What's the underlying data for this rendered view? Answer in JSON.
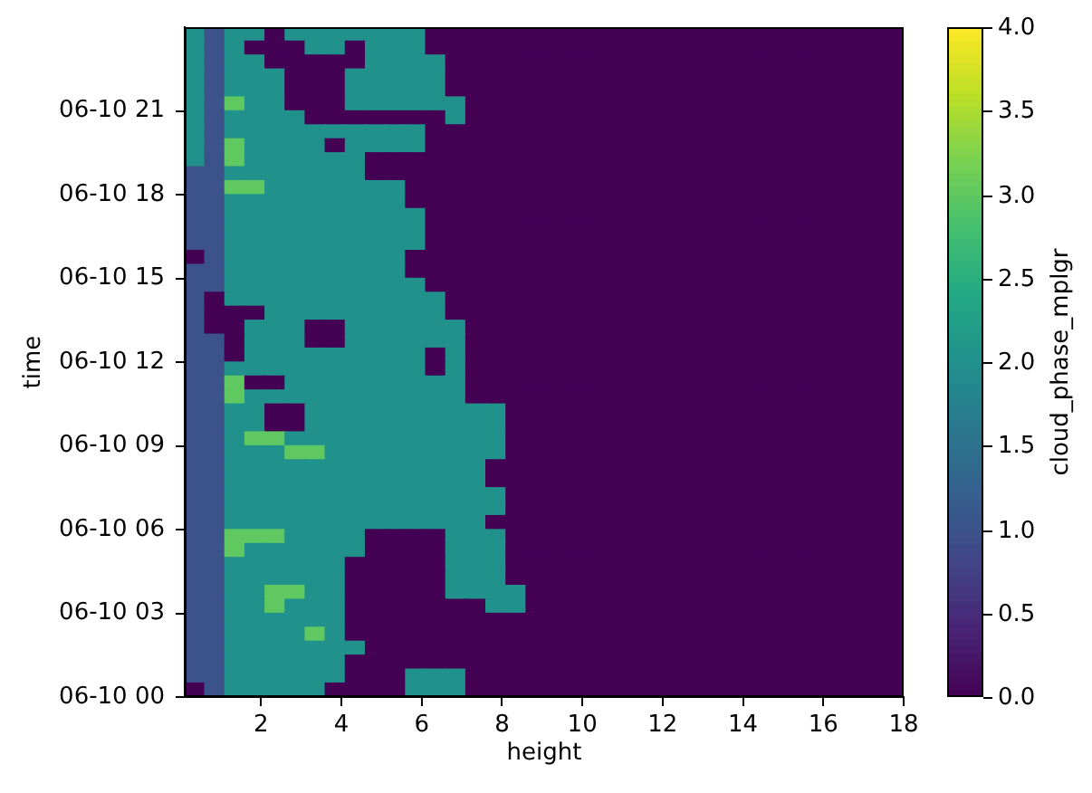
{
  "chart_data": {
    "type": "heatmap",
    "xlabel": "height",
    "ylabel": "time",
    "clabel": "cloud_phase_mplgr",
    "x": [
      0.35,
      0.85,
      1.35,
      1.85,
      2.35,
      2.85,
      3.35,
      3.85,
      4.35,
      4.85,
      5.35,
      5.85,
      6.35,
      6.85,
      7.35,
      7.85,
      8.35,
      8.85,
      9.35,
      9.85,
      10.35,
      10.85,
      11.35,
      11.85,
      12.35,
      12.85,
      13.35,
      13.85,
      14.35,
      14.85,
      15.35,
      15.85,
      16.35,
      16.85,
      17.35,
      17.85
    ],
    "xlim": [
      0.1,
      18.0
    ],
    "xticks": [
      2,
      4,
      6,
      8,
      10,
      12,
      14,
      16,
      18
    ],
    "ylim": [
      "--06-10T00:00",
      "--06-11T00:00"
    ],
    "yticks": [
      {
        "value": "--06-10T00:00",
        "label": "06-10 00"
      },
      {
        "value": "--06-10T03:00",
        "label": "06-10 03"
      },
      {
        "value": "--06-10T06:00",
        "label": "06-10 06"
      },
      {
        "value": "--06-10T09:00",
        "label": "06-10 09"
      },
      {
        "value": "--06-10T12:00",
        "label": "06-10 12"
      },
      {
        "value": "--06-10T15:00",
        "label": "06-10 15"
      },
      {
        "value": "--06-10T18:00",
        "label": "06-10 18"
      },
      {
        "value": "--06-10T21:00",
        "label": "06-10 21"
      }
    ],
    "clim": [
      0,
      4
    ],
    "cticks": [
      {
        "value": 0,
        "label": "0.0"
      },
      {
        "value": 0.5,
        "label": "0.5"
      },
      {
        "value": 1,
        "label": "1.0"
      },
      {
        "value": 1.5,
        "label": "1.5"
      },
      {
        "value": 2,
        "label": "2.0"
      },
      {
        "value": 2.5,
        "label": "2.5"
      },
      {
        "value": 3,
        "label": "3.0"
      },
      {
        "value": 3.5,
        "label": "3.5"
      },
      {
        "value": 4,
        "label": "4.0"
      }
    ],
    "cells": [
      [
        2,
        1,
        2,
        2,
        0,
        2,
        2,
        2,
        2,
        2,
        2,
        2,
        0,
        0,
        0,
        0,
        0,
        0,
        0,
        0,
        0,
        0,
        0,
        0,
        0,
        0,
        0,
        0,
        0,
        0,
        0,
        0,
        0,
        0,
        0,
        0
      ],
      [
        2,
        1,
        2,
        0,
        0,
        0,
        2,
        2,
        0,
        2,
        2,
        2,
        0,
        0,
        0,
        0,
        0,
        0,
        0,
        0,
        0,
        0,
        0,
        0,
        0,
        0,
        0,
        0,
        0,
        0,
        0,
        0,
        0,
        0,
        0,
        0
      ],
      [
        2,
        1,
        2,
        2,
        0,
        0,
        0,
        0,
        0,
        2,
        2,
        2,
        2,
        0,
        0,
        0,
        0,
        0,
        0,
        0,
        0,
        0,
        0,
        0,
        0,
        0,
        0,
        0,
        0,
        0,
        0,
        0,
        0,
        0,
        0,
        0
      ],
      [
        2,
        1,
        2,
        2,
        2,
        0,
        0,
        0,
        2,
        2,
        2,
        2,
        2,
        0,
        0,
        0,
        0,
        0,
        0,
        0,
        0,
        0,
        0,
        0,
        0,
        0,
        0,
        0,
        0,
        0,
        0,
        0,
        0,
        0,
        0,
        0
      ],
      [
        2,
        1,
        2,
        2,
        2,
        0,
        0,
        0,
        2,
        2,
        2,
        2,
        2,
        0,
        0,
        0,
        0,
        0,
        0,
        0,
        0,
        0,
        0,
        0,
        0,
        0,
        0,
        0,
        0,
        0,
        0,
        0,
        0,
        0,
        0,
        0
      ],
      [
        2,
        1,
        3,
        2,
        2,
        0,
        0,
        0,
        2,
        2,
        2,
        2,
        2,
        2,
        0,
        0,
        0,
        0,
        0,
        0,
        0,
        0,
        0,
        0,
        0,
        0,
        0,
        0,
        0,
        0,
        0,
        0,
        0,
        0,
        0,
        0
      ],
      [
        2,
        1,
        2,
        2,
        2,
        2,
        0,
        0,
        0,
        0,
        0,
        0,
        0,
        2,
        0,
        0,
        0,
        0,
        0,
        0,
        0,
        0,
        0,
        0,
        0,
        0,
        0,
        0,
        0,
        0,
        0,
        0,
        0,
        0,
        0,
        0
      ],
      [
        2,
        1,
        2,
        2,
        2,
        2,
        2,
        2,
        2,
        2,
        2,
        2,
        0,
        0,
        0,
        0,
        0,
        0,
        0,
        0,
        0,
        0,
        0,
        0,
        0,
        0,
        0,
        0,
        0,
        0,
        0,
        0,
        0,
        0,
        0,
        0
      ],
      [
        2,
        1,
        3,
        2,
        2,
        2,
        2,
        0,
        2,
        2,
        2,
        2,
        0,
        0,
        0,
        0,
        0,
        0,
        0,
        0,
        0,
        0,
        0,
        0,
        0,
        0,
        0,
        0,
        0,
        0,
        0,
        0,
        0,
        0,
        0,
        0
      ],
      [
        2,
        1,
        3,
        2,
        2,
        2,
        2,
        2,
        2,
        0,
        0,
        0,
        0,
        0,
        0,
        0,
        0,
        0,
        0,
        0,
        0,
        0,
        0,
        0,
        0,
        0,
        0,
        0,
        0,
        0,
        0,
        0,
        0,
        0,
        0,
        0
      ],
      [
        1,
        1,
        2,
        2,
        2,
        2,
        2,
        2,
        2,
        0,
        0,
        0,
        0,
        0,
        0,
        0,
        0,
        0,
        0,
        0,
        0,
        0,
        0,
        0,
        0,
        0,
        0,
        0,
        0,
        0,
        0,
        0,
        0,
        0,
        0,
        0
      ],
      [
        1,
        1,
        3,
        3,
        2,
        2,
        2,
        2,
        2,
        2,
        2,
        0,
        0,
        0,
        0,
        0,
        0,
        0,
        0,
        0,
        0,
        0,
        0,
        0,
        0,
        0,
        0,
        0,
        0,
        0,
        0,
        0,
        0,
        0,
        0,
        0
      ],
      [
        1,
        1,
        2,
        2,
        2,
        2,
        2,
        2,
        2,
        2,
        2,
        0,
        0,
        0,
        0,
        0,
        0,
        0,
        0,
        0,
        0,
        0,
        0,
        0,
        0,
        0,
        0,
        0,
        0,
        0,
        0,
        0,
        0,
        0,
        0,
        0
      ],
      [
        1,
        1,
        2,
        2,
        2,
        2,
        2,
        2,
        2,
        2,
        2,
        2,
        0,
        0,
        0,
        0,
        0,
        0,
        0,
        0,
        0,
        0,
        0,
        0,
        0,
        0,
        0,
        0,
        0,
        0,
        0,
        0,
        0,
        0,
        0,
        0
      ],
      [
        1,
        1,
        2,
        2,
        2,
        2,
        2,
        2,
        2,
        2,
        2,
        2,
        0,
        0,
        0,
        0,
        0,
        0,
        0,
        0,
        0,
        0,
        0,
        0,
        0,
        0,
        0,
        0,
        0,
        0,
        0,
        0,
        0,
        0,
        0,
        0
      ],
      [
        1,
        1,
        2,
        2,
        2,
        2,
        2,
        2,
        2,
        2,
        2,
        2,
        0,
        0,
        0,
        0,
        0,
        0,
        0,
        0,
        0,
        0,
        0,
        0,
        0,
        0,
        0,
        0,
        0,
        0,
        0,
        0,
        0,
        0,
        0,
        0
      ],
      [
        0,
        1,
        2,
        2,
        2,
        2,
        2,
        2,
        2,
        2,
        2,
        0,
        0,
        0,
        0,
        0,
        0,
        0,
        0,
        0,
        0,
        0,
        0,
        0,
        0,
        0,
        0,
        0,
        0,
        0,
        0,
        0,
        0,
        0,
        0,
        0
      ],
      [
        1,
        1,
        2,
        2,
        2,
        2,
        2,
        2,
        2,
        2,
        2,
        0,
        0,
        0,
        0,
        0,
        0,
        0,
        0,
        0,
        0,
        0,
        0,
        0,
        0,
        0,
        0,
        0,
        0,
        0,
        0,
        0,
        0,
        0,
        0,
        0
      ],
      [
        1,
        1,
        2,
        2,
        2,
        2,
        2,
        2,
        2,
        2,
        2,
        2,
        0,
        0,
        0,
        0,
        0,
        0,
        0,
        0,
        0,
        0,
        0,
        0,
        0,
        0,
        0,
        0,
        0,
        0,
        0,
        0,
        0,
        0,
        0,
        0
      ],
      [
        1,
        0,
        2,
        2,
        2,
        2,
        2,
        2,
        2,
        2,
        2,
        2,
        2,
        0,
        0,
        0,
        0,
        0,
        0,
        0,
        0,
        0,
        0,
        0,
        0,
        0,
        0,
        0,
        0,
        0,
        0,
        0,
        0,
        0,
        0,
        0
      ],
      [
        1,
        0,
        0,
        0,
        2,
        2,
        2,
        2,
        2,
        2,
        2,
        2,
        2,
        0,
        0,
        0,
        0,
        0,
        0,
        0,
        0,
        0,
        0,
        0,
        0,
        0,
        0,
        0,
        0,
        0,
        0,
        0,
        0,
        0,
        0,
        0
      ],
      [
        1,
        0,
        0,
        2,
        2,
        2,
        0,
        0,
        2,
        2,
        2,
        2,
        2,
        2,
        0,
        0,
        0,
        0,
        0,
        0,
        0,
        0,
        0,
        0,
        0,
        0,
        0,
        0,
        0,
        0,
        0,
        0,
        0,
        0,
        0,
        0
      ],
      [
        1,
        1,
        0,
        2,
        2,
        2,
        0,
        0,
        2,
        2,
        2,
        2,
        2,
        2,
        0,
        0,
        0,
        0,
        0,
        0,
        0,
        0,
        0,
        0,
        0,
        0,
        0,
        0,
        0,
        0,
        0,
        0,
        0,
        0,
        0,
        0
      ],
      [
        1,
        1,
        0,
        2,
        2,
        2,
        2,
        2,
        2,
        2,
        2,
        2,
        0,
        2,
        0,
        0,
        0,
        0,
        0,
        0,
        0,
        0,
        0,
        0,
        0,
        0,
        0,
        0,
        0,
        0,
        0,
        0,
        0,
        0,
        0,
        0
      ],
      [
        1,
        1,
        2,
        2,
        2,
        2,
        2,
        2,
        2,
        2,
        2,
        2,
        0,
        2,
        0,
        0,
        0,
        0,
        0,
        0,
        0,
        0,
        0,
        0,
        0,
        0,
        0,
        0,
        0,
        0,
        0,
        0,
        0,
        0,
        0,
        0
      ],
      [
        1,
        1,
        3,
        0,
        0,
        2,
        2,
        2,
        2,
        2,
        2,
        2,
        2,
        2,
        0,
        0,
        0,
        0,
        0,
        0,
        0,
        0,
        0,
        0,
        0,
        0,
        0,
        0,
        0,
        0,
        0,
        0,
        0,
        0,
        0,
        0
      ],
      [
        1,
        1,
        3,
        2,
        2,
        2,
        2,
        2,
        2,
        2,
        2,
        2,
        2,
        2,
        0,
        0,
        0,
        0,
        0,
        0,
        0,
        0,
        0,
        0,
        0,
        0,
        0,
        0,
        0,
        0,
        0,
        0,
        0,
        0,
        0,
        0
      ],
      [
        1,
        1,
        2,
        2,
        0,
        0,
        2,
        2,
        2,
        2,
        2,
        2,
        2,
        2,
        2,
        2,
        0,
        0,
        0,
        0,
        0,
        0,
        0,
        0,
        0,
        0,
        0,
        0,
        0,
        0,
        0,
        0,
        0,
        0,
        0,
        0
      ],
      [
        1,
        1,
        2,
        2,
        0,
        0,
        2,
        2,
        2,
        2,
        2,
        2,
        2,
        2,
        2,
        2,
        0,
        0,
        0,
        0,
        0,
        0,
        0,
        0,
        0,
        0,
        0,
        0,
        0,
        0,
        0,
        0,
        0,
        0,
        0,
        0
      ],
      [
        1,
        1,
        2,
        3,
        3,
        2,
        2,
        2,
        2,
        2,
        2,
        2,
        2,
        2,
        2,
        2,
        0,
        0,
        0,
        0,
        0,
        0,
        0,
        0,
        0,
        0,
        0,
        0,
        0,
        0,
        0,
        0,
        0,
        0,
        0,
        0
      ],
      [
        1,
        1,
        2,
        2,
        2,
        3,
        3,
        2,
        2,
        2,
        2,
        2,
        2,
        2,
        2,
        2,
        0,
        0,
        0,
        0,
        0,
        0,
        0,
        0,
        0,
        0,
        0,
        0,
        0,
        0,
        0,
        0,
        0,
        0,
        0,
        0
      ],
      [
        1,
        1,
        2,
        2,
        2,
        2,
        2,
        2,
        2,
        2,
        2,
        2,
        2,
        2,
        2,
        0,
        0,
        0,
        0,
        0,
        0,
        0,
        0,
        0,
        0,
        0,
        0,
        0,
        0,
        0,
        0,
        0,
        0,
        0,
        0,
        0
      ],
      [
        1,
        1,
        2,
        2,
        2,
        2,
        2,
        2,
        2,
        2,
        2,
        2,
        2,
        2,
        2,
        0,
        0,
        0,
        0,
        0,
        0,
        0,
        0,
        0,
        0,
        0,
        0,
        0,
        0,
        0,
        0,
        0,
        0,
        0,
        0,
        0
      ],
      [
        1,
        1,
        2,
        2,
        2,
        2,
        2,
        2,
        2,
        2,
        2,
        2,
        2,
        2,
        2,
        2,
        0,
        0,
        0,
        0,
        0,
        0,
        0,
        0,
        0,
        0,
        0,
        0,
        0,
        0,
        0,
        0,
        0,
        0,
        0,
        0
      ],
      [
        1,
        1,
        2,
        2,
        2,
        2,
        2,
        2,
        2,
        2,
        2,
        2,
        2,
        2,
        2,
        2,
        0,
        0,
        0,
        0,
        0,
        0,
        0,
        0,
        0,
        0,
        0,
        0,
        0,
        0,
        0,
        0,
        0,
        0,
        0,
        0
      ],
      [
        1,
        1,
        2,
        2,
        2,
        2,
        2,
        2,
        2,
        2,
        2,
        2,
        2,
        2,
        2,
        0,
        0,
        0,
        0,
        0,
        0,
        0,
        0,
        0,
        0,
        0,
        0,
        0,
        0,
        0,
        0,
        0,
        0,
        0,
        0,
        0
      ],
      [
        1,
        1,
        3,
        3,
        3,
        2,
        2,
        2,
        2,
        0,
        0,
        0,
        0,
        2,
        2,
        2,
        0,
        0,
        0,
        0,
        0,
        0,
        0,
        0,
        0,
        0,
        0,
        0,
        0,
        0,
        0,
        0,
        0,
        0,
        0,
        0
      ],
      [
        1,
        1,
        3,
        2,
        2,
        2,
        2,
        2,
        2,
        0,
        0,
        0,
        0,
        2,
        2,
        2,
        0,
        0,
        0,
        0,
        0,
        0,
        0,
        0,
        0,
        0,
        0,
        0,
        0,
        0,
        0,
        0,
        0,
        0,
        0,
        0
      ],
      [
        1,
        1,
        2,
        2,
        2,
        2,
        2,
        2,
        0,
        0,
        0,
        0,
        0,
        2,
        2,
        2,
        0,
        0,
        0,
        0,
        0,
        0,
        0,
        0,
        0,
        0,
        0,
        0,
        0,
        0,
        0,
        0,
        0,
        0,
        0,
        0
      ],
      [
        1,
        1,
        2,
        2,
        2,
        2,
        2,
        2,
        0,
        0,
        0,
        0,
        0,
        2,
        2,
        2,
        0,
        0,
        0,
        0,
        0,
        0,
        0,
        0,
        0,
        0,
        0,
        0,
        0,
        0,
        0,
        0,
        0,
        0,
        0,
        0
      ],
      [
        1,
        1,
        2,
        2,
        3,
        3,
        2,
        2,
        0,
        0,
        0,
        0,
        0,
        2,
        2,
        2,
        2,
        0,
        0,
        0,
        0,
        0,
        0,
        0,
        0,
        0,
        0,
        0,
        0,
        0,
        0,
        0,
        0,
        0,
        0,
        0
      ],
      [
        1,
        1,
        2,
        2,
        3,
        2,
        2,
        2,
        0,
        0,
        0,
        0,
        0,
        0,
        0,
        2,
        2,
        0,
        0,
        0,
        0,
        0,
        0,
        0,
        0,
        0,
        0,
        0,
        0,
        0,
        0,
        0,
        0,
        0,
        0,
        0
      ],
      [
        1,
        1,
        2,
        2,
        2,
        2,
        2,
        2,
        0,
        0,
        0,
        0,
        0,
        0,
        0,
        0,
        0,
        0,
        0,
        0,
        0,
        0,
        0,
        0,
        0,
        0,
        0,
        0,
        0,
        0,
        0,
        0,
        0,
        0,
        0,
        0
      ],
      [
        1,
        1,
        2,
        2,
        2,
        2,
        3,
        2,
        0,
        0,
        0,
        0,
        0,
        0,
        0,
        0,
        0,
        0,
        0,
        0,
        0,
        0,
        0,
        0,
        0,
        0,
        0,
        0,
        0,
        0,
        0,
        0,
        0,
        0,
        0,
        0
      ],
      [
        1,
        1,
        2,
        2,
        2,
        2,
        2,
        2,
        2,
        0,
        0,
        0,
        0,
        0,
        0,
        0,
        0,
        0,
        0,
        0,
        0,
        0,
        0,
        0,
        0,
        0,
        0,
        0,
        0,
        0,
        0,
        0,
        0,
        0,
        0,
        0
      ],
      [
        1,
        1,
        2,
        2,
        2,
        2,
        2,
        2,
        0,
        0,
        0,
        0,
        0,
        0,
        0,
        0,
        0,
        0,
        0,
        0,
        0,
        0,
        0,
        0,
        0,
        0,
        0,
        0,
        0,
        0,
        0,
        0,
        0,
        0,
        0,
        0
      ],
      [
        1,
        1,
        2,
        2,
        2,
        2,
        2,
        2,
        0,
        0,
        0,
        2,
        2,
        2,
        0,
        0,
        0,
        0,
        0,
        0,
        0,
        0,
        0,
        0,
        0,
        0,
        0,
        0,
        0,
        0,
        0,
        0,
        0,
        0,
        0,
        0
      ],
      [
        0,
        1,
        2,
        2,
        2,
        2,
        2,
        0,
        0,
        0,
        0,
        2,
        2,
        2,
        0,
        0,
        0,
        0,
        0,
        0,
        0,
        0,
        0,
        0,
        0,
        0,
        0,
        0,
        0,
        0,
        0,
        0,
        0,
        0,
        0,
        0
      ]
    ]
  }
}
